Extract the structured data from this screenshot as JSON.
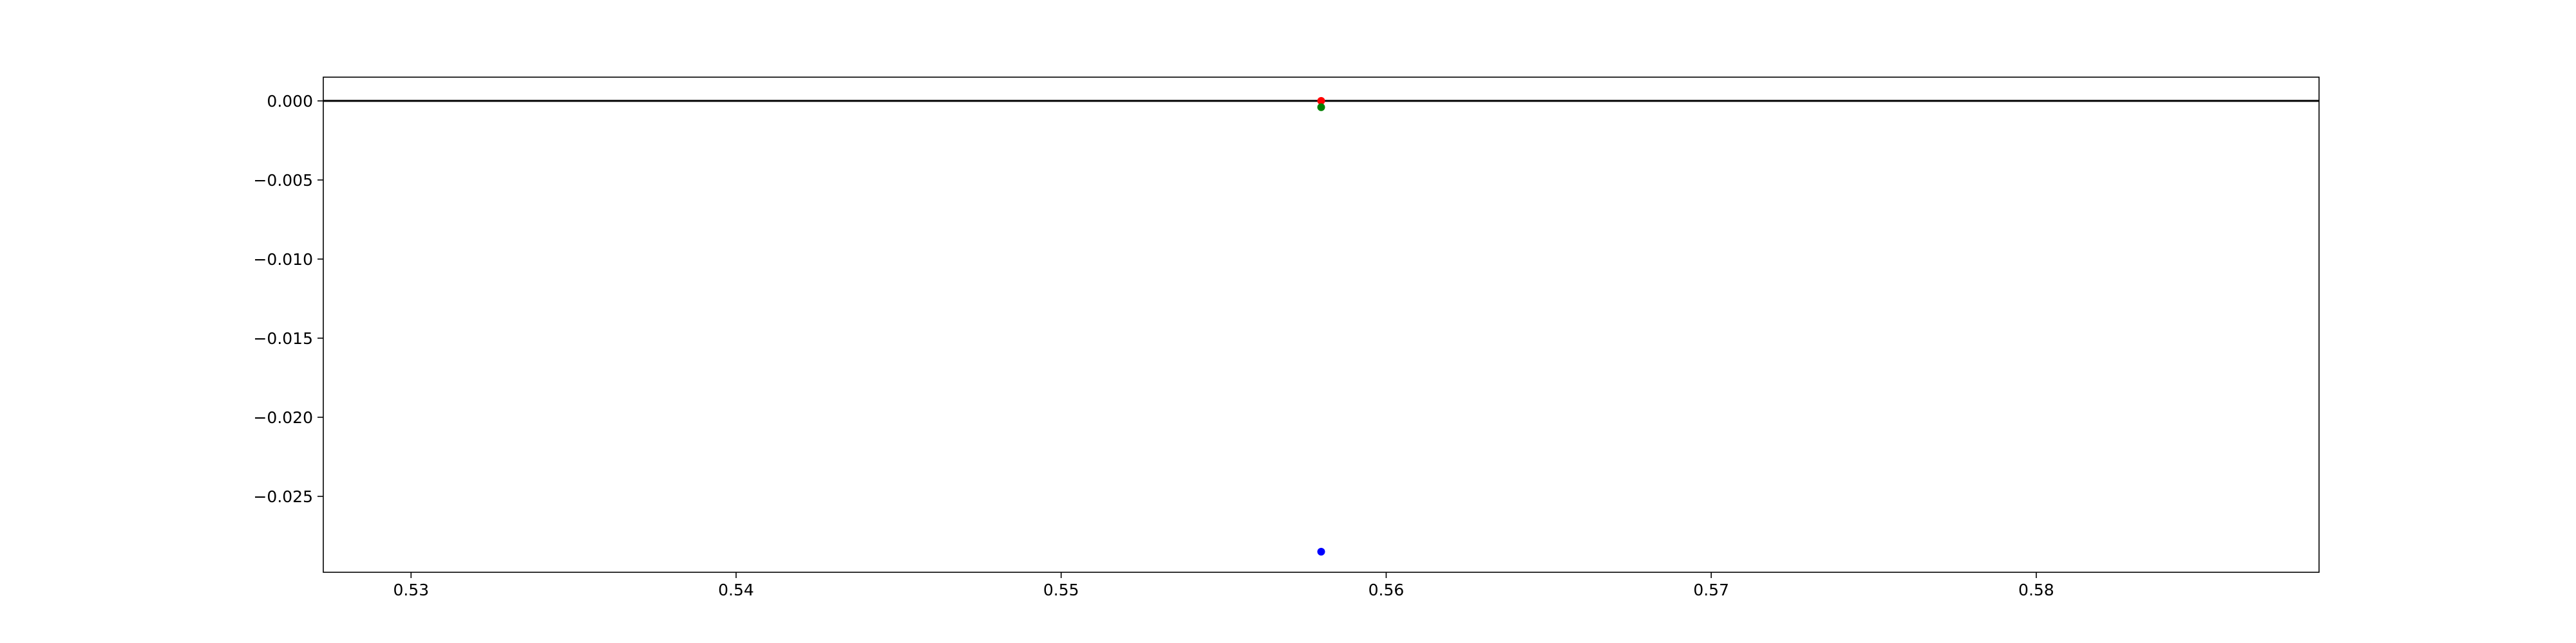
{
  "chart_data": {
    "type": "scatter",
    "title": "",
    "xlabel": "",
    "ylabel": "",
    "xlim": [
      0.5273,
      0.5887
    ],
    "ylim": [
      -0.0298,
      0.0015
    ],
    "grid": false,
    "legend": "none",
    "x_ticks": [
      0.53,
      0.54,
      0.55,
      0.56,
      0.57,
      0.58
    ],
    "x_tick_labels": [
      "0.53",
      "0.54",
      "0.55",
      "0.56",
      "0.57",
      "0.58"
    ],
    "y_ticks": [
      0.0,
      -0.005,
      -0.01,
      -0.015,
      -0.02,
      -0.025
    ],
    "y_tick_labels": [
      "0.000",
      "−0.005",
      "−0.010",
      "−0.015",
      "−0.020",
      "−0.025"
    ],
    "reference_line": {
      "y": 0.0,
      "color": "#000000"
    },
    "series": [
      {
        "color": "#ff0000",
        "points": [
          {
            "x": 0.558,
            "y": 0.0
          }
        ]
      },
      {
        "color": "#008000",
        "points": [
          {
            "x": 0.558,
            "y": -0.0004
          }
        ]
      },
      {
        "color": "#0000ff",
        "points": [
          {
            "x": 0.558,
            "y": -0.0285
          }
        ]
      }
    ]
  }
}
